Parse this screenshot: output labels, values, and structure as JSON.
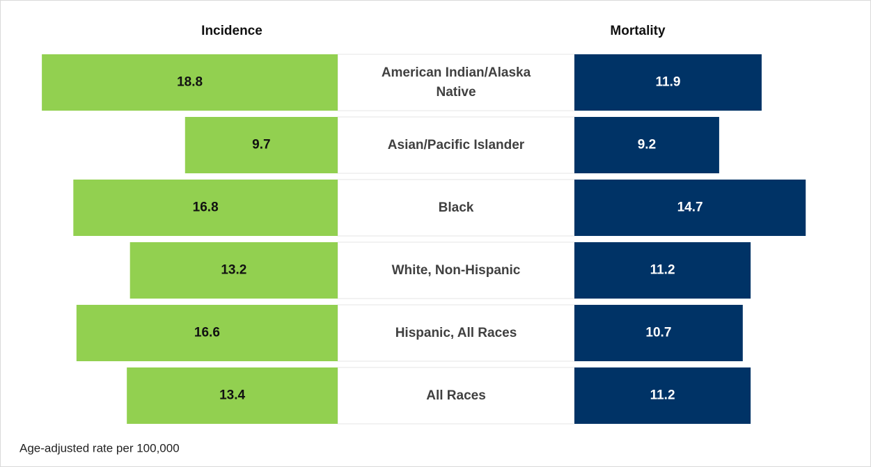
{
  "chart_data": {
    "type": "butterfly",
    "categories": [
      "American Indian/Alaska Native",
      "Asian/Pacific Islander",
      "Black",
      "White, Non-Hispanic",
      "Hispanic, All Races",
      "All Races"
    ],
    "series": [
      {
        "name": "Incidence",
        "color": "#92d050",
        "values": [
          18.8,
          9.7,
          16.8,
          13.2,
          16.6,
          13.4
        ]
      },
      {
        "name": "Mortality",
        "color": "#003366",
        "values": [
          11.9,
          9.2,
          14.7,
          11.2,
          10.7,
          11.2
        ]
      }
    ],
    "footnote": "Age-adjusted rate per 100,000"
  }
}
